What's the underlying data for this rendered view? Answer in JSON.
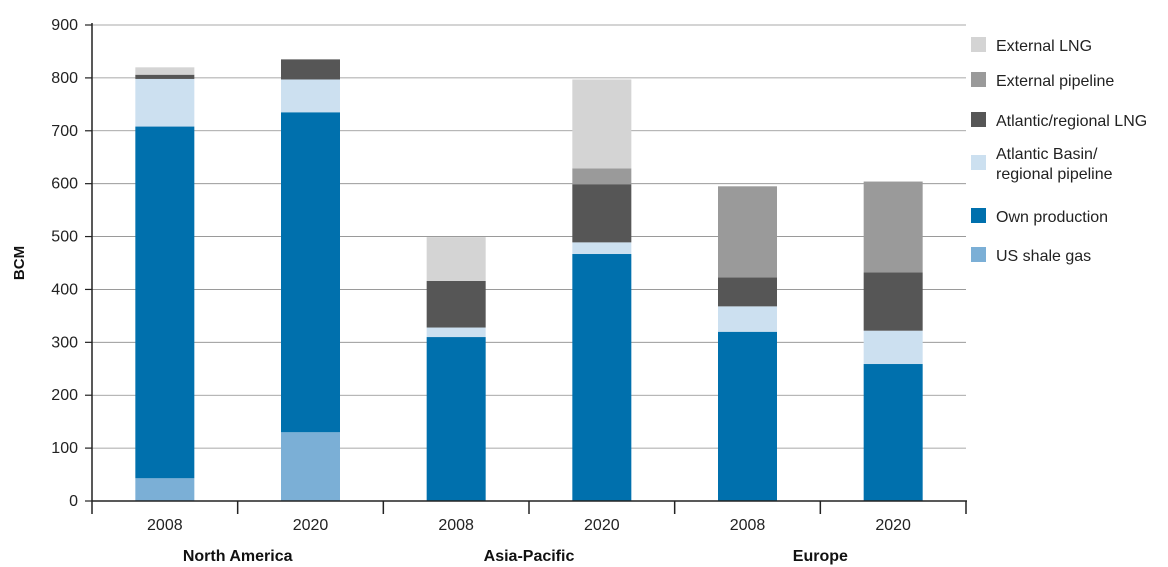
{
  "chart_data": {
    "type": "bar",
    "stacked": true,
    "ylabel": "BCM",
    "ylim": [
      0,
      900
    ],
    "yticks": [
      0,
      100,
      200,
      300,
      400,
      500,
      600,
      700,
      800,
      900
    ],
    "grid": true,
    "legend_position": "right",
    "groups": [
      {
        "label": "North America",
        "categories": [
          "2008",
          "2020"
        ]
      },
      {
        "label": "Asia-Pacific",
        "categories": [
          "2008",
          "2020"
        ]
      },
      {
        "label": "Europe",
        "categories": [
          "2008",
          "2020"
        ]
      }
    ],
    "categories": [
      "2008",
      "2020",
      "2008",
      "2020",
      "2008",
      "2020"
    ],
    "series": [
      {
        "name": "US shale gas",
        "color": "#7bafd6",
        "values": [
          43,
          130,
          0,
          0,
          0,
          0
        ]
      },
      {
        "name": "Own production",
        "color": "#0070ad",
        "values": [
          665,
          605,
          310,
          467,
          320,
          259
        ]
      },
      {
        "name": "Atlantic Basin/ regional pipeline",
        "legend_lines": [
          "Atlantic Basin/",
          "regional pipeline"
        ],
        "color": "#cce0f0",
        "values": [
          90,
          62,
          18,
          22,
          48,
          63
        ]
      },
      {
        "name": "Atlantic/regional LNG",
        "color": "#565656",
        "values": [
          8,
          38,
          88,
          110,
          55,
          110
        ]
      },
      {
        "name": "External pipeline",
        "color": "#9a9a9a",
        "values": [
          0,
          0,
          0,
          30,
          172,
          172
        ]
      },
      {
        "name": "External LNG",
        "color": "#d4d4d4",
        "values": [
          14,
          0,
          83,
          168,
          0,
          0
        ]
      }
    ],
    "legend_order": [
      "External LNG",
      "External pipeline",
      "Atlantic/regional LNG",
      "Atlantic Basin/ regional pipeline",
      "Own production",
      "US shale gas"
    ]
  }
}
